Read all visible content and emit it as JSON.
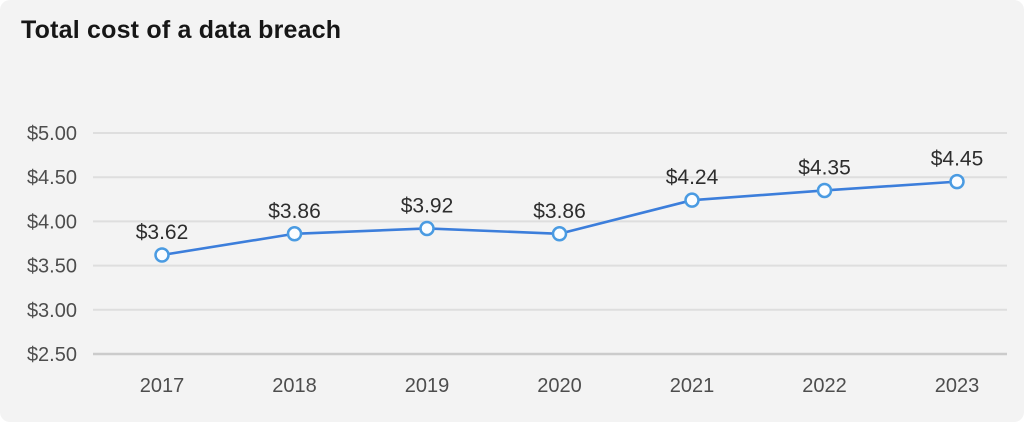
{
  "title": "Total cost of a data breach",
  "chart_data": {
    "type": "line",
    "title": "Total cost of a data breach",
    "categories": [
      "2017",
      "2018",
      "2019",
      "2020",
      "2021",
      "2022",
      "2023"
    ],
    "values": [
      3.62,
      3.86,
      3.92,
      3.86,
      4.24,
      4.35,
      4.45
    ],
    "point_labels": [
      "$3.62",
      "$3.86",
      "$3.92",
      "$3.86",
      "$4.24",
      "$4.35",
      "$4.45"
    ],
    "yticks": [
      {
        "value": 2.5,
        "label": "$2.50"
      },
      {
        "value": 3.0,
        "label": "$3.00"
      },
      {
        "value": 3.5,
        "label": "$3.50"
      },
      {
        "value": 4.0,
        "label": "$4.00"
      },
      {
        "value": 4.5,
        "label": "$4.50"
      },
      {
        "value": 5.0,
        "label": "$5.00"
      }
    ],
    "ylim": [
      2.5,
      5.0
    ],
    "grid": true,
    "legend": false,
    "xlabel": "",
    "ylabel": ""
  },
  "colors": {
    "background": "#f3f3f3",
    "line": "#3c7edb",
    "marker_stroke": "#4a9be2",
    "marker_fill": "#fbfdff",
    "gridline": "#dedede",
    "axis_line": "#cbcbcb",
    "title_text": "#161616",
    "tick_text": "#4d4d4d",
    "point_label_text": "#2d2d2d"
  }
}
